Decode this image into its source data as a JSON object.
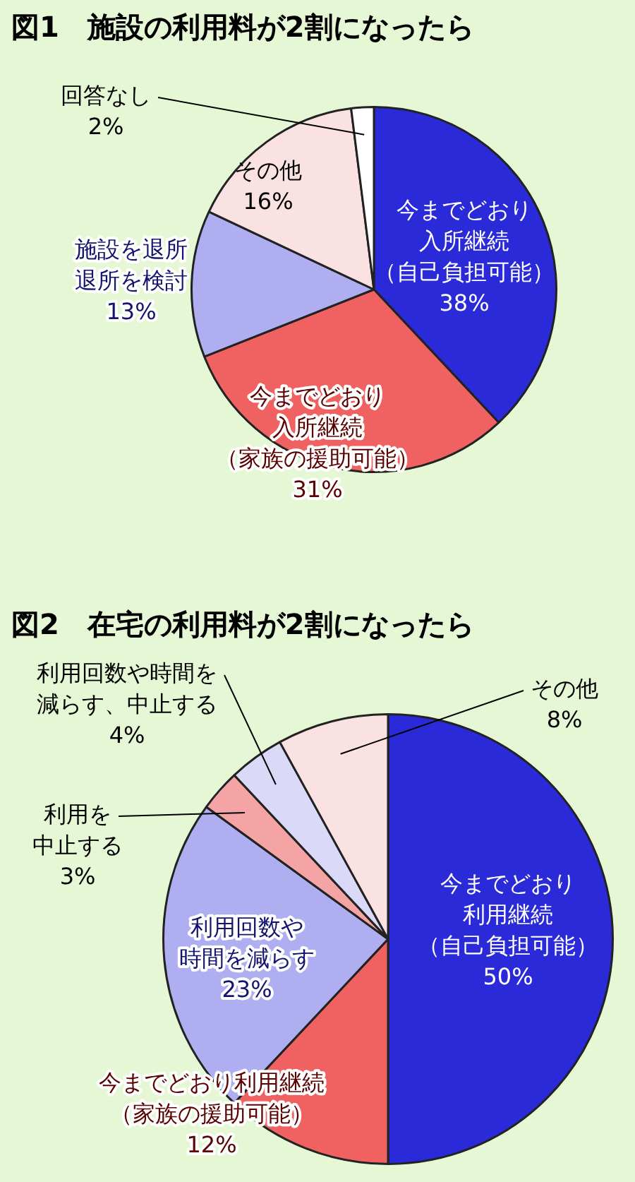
{
  "chart_data": [
    {
      "type": "pie",
      "title": "図1　施設の利用料が2割になったら",
      "categories": [
        "今までどおり入所継続（自己負担可能）",
        "今までどおり入所継続（家族の援助可能）",
        "施設を退所退所を検討",
        "その他",
        "回答なし"
      ],
      "values": [
        38,
        31,
        13,
        16,
        2
      ],
      "value_labels": [
        "38%",
        "31%",
        "13%",
        "16%",
        "2%"
      ],
      "colors": [
        "#2a2ad8",
        "#f06262",
        "#aeaef0",
        "#fbe2e2",
        "#ffffff"
      ]
    },
    {
      "type": "pie",
      "title": "図2　在宅の利用料が2割になったら",
      "categories": [
        "今までどおり利用継続（自己負担可能）",
        "今までどおり利用継続（家族の援助可能）",
        "利用回数や時間を減らす",
        "利用を中止する",
        "利用回数や時間を減らす、中止する",
        "その他"
      ],
      "values": [
        50,
        12,
        23,
        3,
        4,
        8
      ],
      "value_labels": [
        "50%",
        "12%",
        "23%",
        "3%",
        "4%",
        "8%"
      ],
      "colors": [
        "#2a2ad8",
        "#f06262",
        "#aeaef0",
        "#f4a4a4",
        "#dadaf8",
        "#fbe2e2"
      ]
    }
  ]
}
